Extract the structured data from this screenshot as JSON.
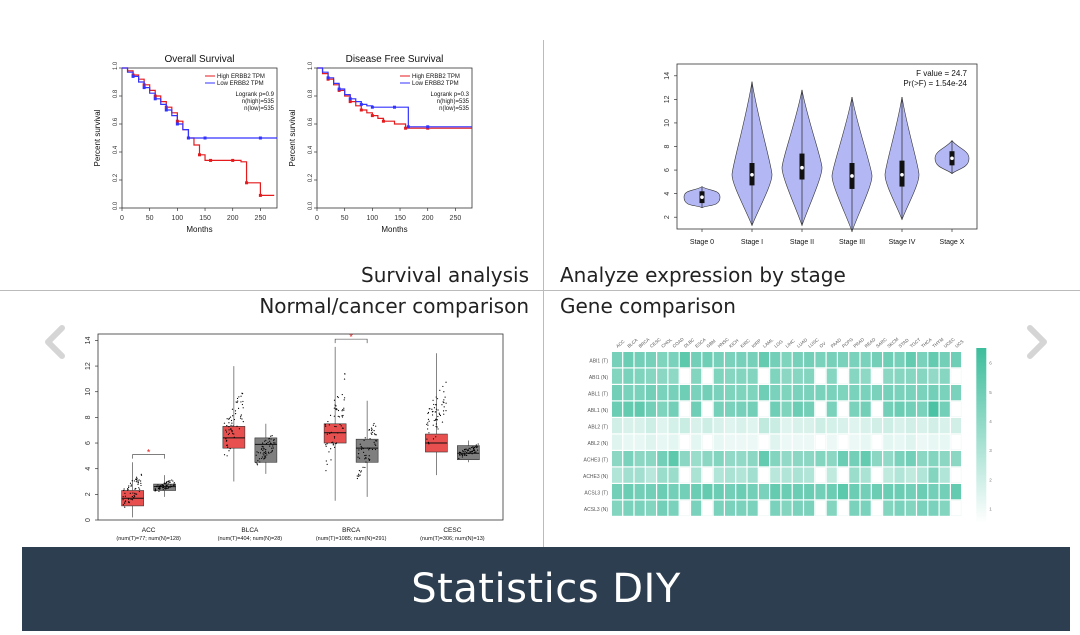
{
  "survival": {
    "os": {
      "title": "Overall Survival",
      "xlabel": "Months",
      "ylabel": "Percent survival",
      "legend": [
        "High ERBB2 TPM",
        "Low ERBB2 TPM"
      ],
      "stats": [
        "Logrank p=0.9",
        "n(high)=535",
        "n(low)=535"
      ],
      "xticks": [
        "0",
        "50",
        "100",
        "150",
        "200",
        "250"
      ],
      "yticks": [
        "0.0",
        "0.2",
        "0.4",
        "0.6",
        "0.8",
        "1.0"
      ]
    },
    "dfs": {
      "title": "Disease Free Survival",
      "xlabel": "Months",
      "ylabel": "Percent survival",
      "legend": [
        "High ERBB2 TPM",
        "Low ERBB2 TPM"
      ],
      "stats": [
        "Logrank p=0.3",
        "n(high)=535",
        "n(low)=535"
      ],
      "xticks": [
        "0",
        "50",
        "100",
        "150",
        "200",
        "250"
      ],
      "yticks": [
        "0.0",
        "0.2",
        "0.4",
        "0.6",
        "0.8",
        "1.0"
      ]
    }
  },
  "captions": {
    "survival": "Survival analysis",
    "stage": "Analyze expression by stage",
    "normal_cancer": "Normal/cancer comparison",
    "gene": "Gene comparison"
  },
  "footer": {
    "title": "Statistics DIY"
  },
  "icons": {
    "prev": "chevron-left-icon",
    "next": "chevron-right-icon"
  },
  "colors": {
    "high": "#e41a1c",
    "low": "#3333ff",
    "violin": "#b3b8f5",
    "box_red": "#e8504f",
    "box_gray": "#7f7f7f",
    "heat": "#3dbd9c",
    "footer": "#2d3e50"
  },
  "chart_data": [
    {
      "type": "line",
      "title": "Overall Survival",
      "xlabel": "Months",
      "ylabel": "Percent survival",
      "xlim": [
        0,
        280
      ],
      "ylim": [
        0,
        1
      ],
      "series": [
        {
          "name": "High ERBB2 TPM",
          "x": [
            0,
            10,
            20,
            30,
            40,
            50,
            60,
            70,
            80,
            90,
            100,
            110,
            120,
            130,
            140,
            150,
            160,
            180,
            200,
            215,
            225,
            240,
            250,
            265,
            275
          ],
          "y": [
            1,
            0.98,
            0.95,
            0.92,
            0.88,
            0.84,
            0.8,
            0.76,
            0.72,
            0.68,
            0.62,
            0.56,
            0.5,
            0.45,
            0.38,
            0.34,
            0.34,
            0.34,
            0.34,
            0.33,
            0.18,
            0.18,
            0.09,
            0.09,
            0.09
          ]
        },
        {
          "name": "Low ERBB2 TPM",
          "x": [
            0,
            10,
            20,
            30,
            40,
            50,
            60,
            70,
            80,
            90,
            100,
            110,
            120,
            130,
            150,
            200,
            250,
            280
          ],
          "y": [
            1,
            0.97,
            0.94,
            0.9,
            0.86,
            0.82,
            0.78,
            0.74,
            0.7,
            0.66,
            0.6,
            0.56,
            0.5,
            0.5,
            0.5,
            0.5,
            0.5,
            0.5
          ]
        }
      ]
    },
    {
      "type": "line",
      "title": "Disease Free Survival",
      "xlabel": "Months",
      "ylabel": "Percent survival",
      "xlim": [
        0,
        280
      ],
      "ylim": [
        0,
        1
      ],
      "series": [
        {
          "name": "High ERBB2 TPM",
          "x": [
            0,
            10,
            20,
            30,
            40,
            50,
            60,
            70,
            80,
            90,
            100,
            110,
            120,
            140,
            160,
            170,
            200,
            250,
            280
          ],
          "y": [
            1,
            0.96,
            0.92,
            0.88,
            0.84,
            0.8,
            0.76,
            0.73,
            0.7,
            0.68,
            0.66,
            0.64,
            0.62,
            0.6,
            0.57,
            0.57,
            0.57,
            0.57,
            0.57
          ]
        },
        {
          "name": "Low ERBB2 TPM",
          "x": [
            0,
            10,
            20,
            30,
            40,
            50,
            60,
            70,
            80,
            90,
            100,
            120,
            140,
            160,
            165,
            170,
            200,
            250,
            280
          ],
          "y": [
            1,
            0.97,
            0.93,
            0.89,
            0.85,
            0.81,
            0.78,
            0.76,
            0.74,
            0.73,
            0.72,
            0.72,
            0.72,
            0.72,
            0.58,
            0.58,
            0.58,
            0.58,
            0.58
          ]
        }
      ]
    },
    {
      "type": "violin",
      "categories": [
        "Stage 0",
        "Stage I",
        "Stage II",
        "Stage III",
        "Stage IV",
        "Stage X"
      ],
      "annotation": [
        "F value = 24.7",
        "Pr(>F) = 1.54e-24"
      ],
      "yticks": [
        "2",
        "4",
        "6",
        "8",
        "10",
        "12",
        "14"
      ],
      "ylim": [
        1,
        15
      ],
      "groups": [
        {
          "min": 2.8,
          "max": 4.6,
          "median": 3.7,
          "q1": 3.2,
          "q3": 4.2,
          "width": 0.9
        },
        {
          "min": 1.3,
          "max": 13.5,
          "median": 5.6,
          "q1": 4.7,
          "q3": 6.6,
          "width": 1.0
        },
        {
          "min": 1.3,
          "max": 12.8,
          "median": 6.2,
          "q1": 5.2,
          "q3": 7.4,
          "width": 1.0
        },
        {
          "min": 0.8,
          "max": 12.2,
          "median": 5.5,
          "q1": 4.4,
          "q3": 6.6,
          "width": 1.0
        },
        {
          "min": 1.8,
          "max": 12.2,
          "median": 5.6,
          "q1": 4.6,
          "q3": 6.8,
          "width": 0.85
        },
        {
          "min": 5.7,
          "max": 8.5,
          "median": 7.0,
          "q1": 6.4,
          "q3": 7.6,
          "width": 0.85
        }
      ]
    },
    {
      "type": "box",
      "categories": [
        "ACC",
        "BLCA",
        "BRCA",
        "CESC"
      ],
      "sublabels": [
        "(num(T)=77; num(N)=128)",
        "(num(T)=404; num(N)=28)",
        "(num(T)=1085; num(N)=291)",
        "(num(T)=306; num(N)=13)"
      ],
      "yticks": [
        "0",
        "2",
        "4",
        "6",
        "8",
        "10",
        "12",
        "14"
      ],
      "ylim": [
        0,
        14.5
      ],
      "tumor": [
        {
          "q1": 1.1,
          "median": 1.7,
          "q3": 2.3,
          "min": 0.2,
          "max": 4.5
        },
        {
          "q1": 5.6,
          "median": 6.4,
          "q3": 7.3,
          "min": 3.0,
          "max": 12.0
        },
        {
          "q1": 6.0,
          "median": 6.8,
          "q3": 7.5,
          "min": 1.5,
          "max": 13.5
        },
        {
          "q1": 5.3,
          "median": 6.0,
          "q3": 6.7,
          "min": 3.5,
          "max": 13.0
        }
      ],
      "normal": [
        {
          "q1": 2.3,
          "median": 2.6,
          "q3": 2.8,
          "min": 1.8,
          "max": 3.5
        },
        {
          "q1": 4.5,
          "median": 5.9,
          "q3": 6.4,
          "min": 3.6,
          "max": 7.5
        },
        {
          "q1": 4.5,
          "median": 5.6,
          "q3": 6.3,
          "min": 1.8,
          "max": 9.3
        },
        {
          "q1": 4.7,
          "median": 5.2,
          "q3": 5.8,
          "min": 4.5,
          "max": 6.2
        }
      ],
      "significant": [
        true,
        false,
        true,
        false
      ]
    },
    {
      "type": "heatmap",
      "columns": [
        "ACC",
        "BLCA",
        "BRCA",
        "CESC",
        "CHOL",
        "COAD",
        "DLBC",
        "ESCA",
        "GBM",
        "HNSC",
        "KICH",
        "KIRC",
        "KIRP",
        "LAML",
        "LGG",
        "LIHC",
        "LUAD",
        "LUSC",
        "OV",
        "PAAD",
        "PCPG",
        "PRAD",
        "READ",
        "SARC",
        "SKCM",
        "STAD",
        "TGCT",
        "THCA",
        "THYM",
        "UCEC",
        "UCS"
      ],
      "rows": [
        "ABI1 (T)",
        "ABI1 (N)",
        "ABL1 (T)",
        "ABL1 (N)",
        "ABL2 (T)",
        "ABL2 (N)",
        "ACHE3 (T)",
        "ACHE3 (N)",
        "ACSL3 (T)",
        "ACSL3 (N)"
      ],
      "scale": [
        "1",
        "2",
        "3",
        "4",
        "5",
        "6"
      ],
      "values": [
        [
          4.5,
          4.8,
          4.6,
          4.5,
          4.3,
          4.4,
          5.2,
          4.6,
          4.7,
          4.5,
          4.4,
          4.5,
          4.5,
          5.0,
          4.6,
          4.3,
          4.5,
          4.6,
          4.4,
          4.5,
          4.4,
          4.4,
          4.4,
          4.6,
          4.7,
          4.5,
          5.0,
          4.4,
          5.0,
          4.6,
          4.7
        ],
        [
          4.2,
          4.4,
          4.3,
          4.1,
          4.0,
          3.9,
          0,
          4.2,
          0,
          4.3,
          4.1,
          4.2,
          4.2,
          0,
          4.3,
          4.0,
          4.1,
          4.2,
          0,
          4.1,
          0,
          4.1,
          3.9,
          0,
          4.0,
          4.1,
          4.1,
          4.1,
          3.8,
          4.1,
          0
        ],
        [
          4.6,
          4.4,
          4.4,
          4.6,
          4.4,
          4.5,
          4.7,
          4.4,
          4.6,
          4.4,
          4.3,
          4.3,
          4.3,
          4.7,
          4.4,
          4.3,
          4.4,
          4.4,
          4.4,
          4.4,
          4.3,
          4.4,
          4.4,
          4.4,
          4.5,
          4.4,
          4.4,
          4.4,
          4.6,
          4.4,
          4.4
        ],
        [
          4.8,
          5.0,
          5.1,
          4.6,
          4.3,
          4.6,
          0,
          4.7,
          0,
          4.5,
          4.4,
          4.5,
          4.6,
          0,
          4.7,
          4.3,
          4.8,
          4.6,
          0,
          4.4,
          0,
          4.4,
          4.6,
          0,
          4.6,
          4.8,
          4.6,
          4.4,
          5.6,
          4.6,
          0
        ],
        [
          2.2,
          2.0,
          2.0,
          2.3,
          1.8,
          2.1,
          2.4,
          2.0,
          2.3,
          2.0,
          1.8,
          2.0,
          1.8,
          2.6,
          2.4,
          1.8,
          2.0,
          2.0,
          2.3,
          2.1,
          2.0,
          1.8,
          2.0,
          2.2,
          2.3,
          2.0,
          2.2,
          2.0,
          2.2,
          2.0,
          2.2
        ],
        [
          1.8,
          1.6,
          1.6,
          1.8,
          1.6,
          1.7,
          0,
          1.7,
          0,
          1.6,
          1.5,
          1.5,
          1.5,
          0,
          1.8,
          1.5,
          1.5,
          1.5,
          0,
          1.5,
          0,
          1.5,
          1.6,
          0,
          1.7,
          1.6,
          1.8,
          1.5,
          1.6,
          1.6,
          0
        ],
        [
          4.0,
          4.4,
          4.0,
          4.0,
          4.6,
          5.2,
          4.0,
          3.6,
          4.0,
          4.2,
          3.8,
          3.8,
          4.0,
          5.0,
          4.2,
          3.8,
          4.0,
          4.0,
          4.2,
          4.0,
          4.8,
          4.6,
          5.0,
          4.0,
          3.8,
          4.4,
          4.6,
          4.0,
          4.2,
          4.0,
          4.0
        ],
        [
          3.0,
          3.4,
          3.4,
          2.8,
          3.6,
          3.6,
          0,
          3.2,
          0,
          3.0,
          3.2,
          3.0,
          3.4,
          0,
          2.8,
          3.0,
          3.2,
          3.0,
          0,
          2.6,
          0,
          3.6,
          3.2,
          0,
          2.6,
          3.0,
          2.6,
          3.0,
          4.2,
          3.0,
          0
        ],
        [
          4.6,
          4.8,
          4.6,
          4.6,
          4.8,
          4.6,
          4.6,
          4.8,
          5.0,
          4.8,
          4.6,
          4.8,
          4.6,
          4.4,
          5.0,
          4.8,
          4.8,
          4.8,
          4.6,
          4.8,
          5.2,
          4.8,
          4.6,
          4.8,
          4.8,
          4.8,
          4.6,
          4.8,
          4.6,
          4.6,
          5.0
        ],
        [
          4.2,
          4.4,
          4.4,
          4.2,
          4.6,
          4.4,
          0,
          4.4,
          0,
          4.4,
          4.4,
          4.4,
          4.4,
          0,
          4.4,
          4.2,
          4.4,
          4.4,
          0,
          4.2,
          0,
          4.4,
          4.4,
          0,
          4.2,
          4.4,
          4.2,
          4.4,
          4.4,
          4.2,
          0
        ]
      ]
    }
  ]
}
